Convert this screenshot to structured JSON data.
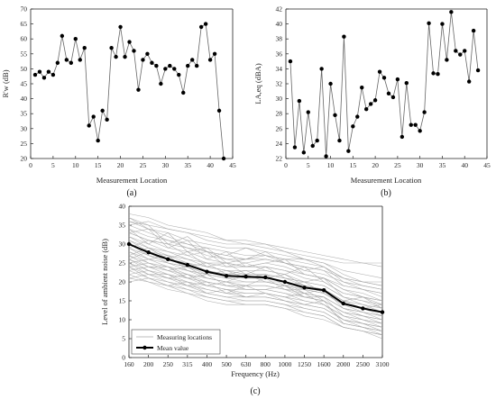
{
  "chart_data": [
    {
      "type": "line",
      "panel_label": "(a)",
      "xlabel": "Measurement Location",
      "ylabel": "R'w (dB)",
      "xlim": [
        0,
        45
      ],
      "ylim": [
        20,
        70
      ],
      "xticks": [
        0,
        5,
        10,
        15,
        20,
        25,
        30,
        35,
        40,
        45
      ],
      "yticks": [
        20,
        25,
        30,
        35,
        40,
        45,
        50,
        55,
        60,
        65,
        70
      ],
      "series": [
        {
          "x": [
            1,
            2,
            3,
            4,
            5,
            6,
            7,
            8,
            9,
            10,
            11,
            12,
            13,
            14,
            15,
            16,
            17,
            18,
            19,
            20,
            21,
            22,
            23,
            24,
            25,
            26,
            27,
            28,
            29,
            30,
            31,
            32,
            33,
            34,
            35,
            36,
            37,
            38,
            39,
            40,
            41,
            42,
            43
          ],
          "values": [
            48,
            49,
            47,
            49,
            48,
            52,
            61,
            53,
            52,
            60,
            53,
            57,
            31,
            34,
            26,
            36,
            33,
            57,
            54,
            64,
            54,
            59,
            56,
            43,
            53,
            55,
            52,
            51,
            45,
            50,
            51,
            50,
            48,
            42,
            51,
            53,
            51,
            64,
            65,
            53,
            55,
            36,
            20
          ]
        }
      ]
    },
    {
      "type": "line",
      "panel_label": "(b)",
      "xlabel": "Measurement Location",
      "ylabel": "LA,eq (dBA)",
      "xlim": [
        0,
        45
      ],
      "ylim": [
        22,
        42
      ],
      "xticks": [
        0,
        5,
        10,
        15,
        20,
        25,
        30,
        35,
        40,
        45
      ],
      "yticks": [
        22,
        24,
        26,
        28,
        30,
        32,
        34,
        36,
        38,
        40,
        42
      ],
      "series": [
        {
          "x": [
            1,
            2,
            3,
            4,
            5,
            6,
            7,
            8,
            9,
            10,
            11,
            12,
            13,
            14,
            15,
            16,
            17,
            18,
            19,
            20,
            21,
            22,
            23,
            24,
            25,
            26,
            27,
            28,
            29,
            30,
            31,
            32,
            33,
            34,
            35,
            36,
            37,
            38,
            39,
            40,
            41,
            42,
            43
          ],
          "values": [
            35.0,
            23.5,
            29.7,
            22.8,
            28.2,
            23.7,
            24.4,
            34.0,
            22.3,
            32.0,
            27.8,
            24.4,
            38.3,
            23.0,
            26.3,
            27.6,
            31.5,
            28.6,
            29.3,
            29.8,
            33.6,
            32.8,
            30.7,
            30.2,
            32.6,
            24.9,
            32.1,
            26.5,
            26.5,
            25.7,
            28.2,
            40.1,
            33.4,
            33.3,
            40.0,
            35.2,
            41.6,
            36.4,
            35.9,
            36.4,
            32.3,
            39.1,
            33.8
          ]
        }
      ]
    },
    {
      "type": "line",
      "panel_label": "(c)",
      "xlabel": "Frequency (Hz)",
      "ylabel": "Level of ambient noise (dB)",
      "categories": [
        "160",
        "200",
        "250",
        "315",
        "400",
        "500",
        "630",
        "800",
        "1000",
        "1250",
        "1600",
        "2000",
        "2500",
        "3100"
      ],
      "ylim": [
        0,
        40
      ],
      "yticks": [
        0,
        5,
        10,
        15,
        20,
        25,
        30,
        35,
        40
      ],
      "legend": {
        "position": "bottom-left",
        "entries": [
          "Measuring locations",
          "Mean value"
        ]
      },
      "series": [
        {
          "name": "Mean value",
          "values": [
            30.0,
            27.8,
            26.0,
            24.5,
            22.7,
            21.6,
            21.4,
            21.2,
            20.0,
            18.5,
            17.8,
            14.3,
            13.0,
            12.0
          ]
        }
      ],
      "individual_locations": [
        [
          38,
          37,
          35,
          34,
          33,
          31,
          31,
          30,
          28,
          26,
          25,
          22,
          20,
          19
        ],
        [
          37,
          34,
          33,
          31,
          30,
          29,
          29,
          28,
          27,
          26,
          25,
          23,
          22,
          21
        ],
        [
          36,
          34,
          32,
          30,
          29,
          28,
          27,
          27,
          26,
          26,
          24,
          21,
          20,
          19
        ],
        [
          35,
          33,
          31,
          29,
          28,
          26,
          25,
          26,
          25,
          24,
          23,
          19,
          18,
          17
        ],
        [
          34,
          32,
          31,
          30,
          28,
          27,
          26,
          27,
          26,
          25,
          24,
          21,
          19,
          18
        ],
        [
          33,
          31,
          30,
          29,
          27,
          26,
          26,
          26,
          25,
          23,
          22,
          20,
          18,
          17
        ],
        [
          33,
          31,
          29,
          28,
          26,
          25,
          24,
          25,
          24,
          22,
          21,
          18,
          17,
          15
        ],
        [
          32,
          30,
          28,
          27,
          25,
          25,
          24,
          24,
          23,
          22,
          21,
          18,
          16,
          15
        ],
        [
          32,
          29,
          28,
          26,
          25,
          24,
          24,
          24,
          23,
          21,
          20,
          17,
          16,
          14
        ],
        [
          31,
          29,
          27,
          26,
          24,
          23,
          23,
          23,
          22,
          20,
          19,
          16,
          15,
          13
        ],
        [
          31,
          28,
          27,
          25,
          24,
          23,
          22,
          22,
          21,
          20,
          19,
          16,
          14,
          13
        ],
        [
          30,
          28,
          26,
          25,
          23,
          22,
          22,
          22,
          21,
          19,
          18,
          15,
          14,
          12
        ],
        [
          30,
          27,
          26,
          24,
          23,
          22,
          21,
          21,
          20,
          19,
          18,
          15,
          13,
          12
        ],
        [
          29,
          27,
          25,
          24,
          22,
          21,
          21,
          21,
          20,
          18,
          17,
          14,
          13,
          11
        ],
        [
          29,
          26,
          25,
          23,
          22,
          21,
          20,
          20,
          19,
          18,
          17,
          14,
          12,
          11
        ],
        [
          28,
          26,
          24,
          23,
          21,
          20,
          20,
          20,
          19,
          17,
          16,
          13,
          12,
          10
        ],
        [
          28,
          25,
          24,
          22,
          21,
          20,
          19,
          19,
          18,
          17,
          16,
          13,
          11,
          10
        ],
        [
          27,
          25,
          23,
          22,
          20,
          19,
          19,
          19,
          18,
          16,
          15,
          12,
          11,
          9
        ],
        [
          27,
          24,
          23,
          21,
          20,
          19,
          18,
          18,
          17,
          16,
          15,
          12,
          10,
          9
        ],
        [
          26,
          24,
          22,
          21,
          19,
          18,
          18,
          18,
          17,
          15,
          14,
          11,
          10,
          8
        ],
        [
          26,
          23,
          22,
          20,
          19,
          18,
          17,
          17,
          16,
          15,
          14,
          11,
          9,
          8
        ],
        [
          25,
          23,
          21,
          20,
          18,
          17,
          17,
          17,
          16,
          14,
          13,
          10,
          9,
          7
        ],
        [
          25,
          22,
          21,
          19,
          18,
          17,
          16,
          16,
          15,
          14,
          13,
          10,
          8,
          7
        ],
        [
          24,
          22,
          20,
          19,
          17,
          16,
          16,
          16,
          15,
          13,
          12,
          9,
          8,
          7
        ],
        [
          24,
          21,
          20,
          18,
          17,
          16,
          15,
          15,
          14,
          13,
          12,
          9,
          8,
          6
        ],
        [
          23,
          21,
          19,
          18,
          16,
          15,
          15,
          15,
          14,
          12,
          11,
          8,
          7,
          6
        ],
        [
          22,
          20,
          19,
          17,
          16,
          15,
          14,
          14,
          13,
          12,
          11,
          8,
          7,
          6
        ],
        [
          21,
          20,
          18,
          17,
          15,
          14,
          14,
          14,
          13,
          11,
          10,
          8,
          7,
          5
        ],
        [
          36,
          35,
          34,
          33,
          32,
          31,
          30,
          29,
          28,
          27,
          26,
          25,
          25,
          24
        ],
        [
          35,
          36,
          34,
          33,
          31,
          30,
          30,
          30,
          29,
          28,
          27,
          26,
          25,
          25
        ],
        [
          37,
          35,
          30,
          32,
          28,
          27,
          29,
          27,
          25,
          24,
          23,
          21,
          20,
          20
        ],
        [
          34,
          30,
          33,
          28,
          29,
          25,
          26,
          28,
          25,
          23,
          24,
          20,
          19,
          18
        ],
        [
          33,
          34,
          29,
          31,
          26,
          28,
          24,
          25,
          26,
          22,
          21,
          19,
          18,
          16
        ],
        [
          29,
          31,
          30,
          27,
          28,
          24,
          25,
          23,
          22,
          24,
          20,
          17,
          16,
          15
        ],
        [
          27,
          29,
          26,
          28,
          24,
          25,
          22,
          24,
          21,
          20,
          21,
          16,
          15,
          14
        ],
        [
          26,
          28,
          25,
          24,
          25,
          22,
          23,
          21,
          22,
          19,
          18,
          15,
          16,
          13
        ],
        [
          25,
          26,
          27,
          23,
          22,
          23,
          21,
          22,
          19,
          20,
          17,
          14,
          13,
          14
        ],
        [
          24,
          25,
          23,
          24,
          21,
          20,
          22,
          20,
          20,
          17,
          18,
          13,
          12,
          11
        ],
        [
          23,
          24,
          24,
          21,
          22,
          19,
          19,
          21,
          18,
          18,
          15,
          12,
          11,
          10
        ],
        [
          22,
          23,
          21,
          22,
          19,
          20,
          18,
          18,
          19,
          16,
          16,
          11,
          10,
          9
        ],
        [
          21,
          22,
          22,
          19,
          20,
          17,
          19,
          17,
          16,
          17,
          14,
          10,
          9,
          8
        ],
        [
          20,
          21,
          19,
          20,
          17,
          18,
          16,
          17,
          15,
          14,
          15,
          9,
          8,
          7
        ]
      ]
    }
  ]
}
